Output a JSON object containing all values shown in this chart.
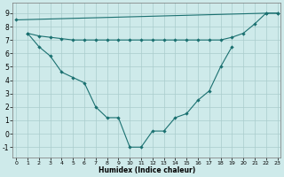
{
  "line1_x": [
    0,
    22,
    23
  ],
  "line1_y": [
    8.5,
    9.0,
    9.0
  ],
  "line2_x": [
    1,
    2,
    3,
    4,
    5,
    6,
    7,
    8,
    9,
    10,
    11,
    12,
    13,
    14,
    15,
    16,
    17,
    18,
    19,
    20,
    21,
    22,
    23
  ],
  "line2_y": [
    7.5,
    7.3,
    7.2,
    7.1,
    7.0,
    7.0,
    7.0,
    7.0,
    7.0,
    7.0,
    7.0,
    7.0,
    7.0,
    7.0,
    7.0,
    7.0,
    7.0,
    7.0,
    7.2,
    7.5,
    8.2,
    9.0,
    9.0
  ],
  "line3_x": [
    1,
    2,
    3,
    4,
    5,
    6,
    7,
    8,
    9,
    10,
    11,
    12,
    13,
    14,
    15,
    16,
    17,
    18,
    19
  ],
  "line3_y": [
    7.5,
    6.5,
    5.8,
    4.6,
    4.2,
    3.8,
    2.0,
    1.2,
    1.2,
    -1.0,
    -1.0,
    0.2,
    0.2,
    1.2,
    1.5,
    2.5,
    3.2,
    5.0,
    6.5
  ],
  "xlabel": "Humidex (Indice chaleur)",
  "xticks": [
    0,
    1,
    2,
    3,
    4,
    5,
    6,
    7,
    8,
    9,
    10,
    11,
    12,
    13,
    14,
    15,
    16,
    17,
    18,
    19,
    20,
    21,
    22,
    23
  ],
  "yticks": [
    -1,
    0,
    1,
    2,
    3,
    4,
    5,
    6,
    7,
    8,
    9
  ],
  "xlim": [
    -0.3,
    23.3
  ],
  "ylim": [
    -1.8,
    9.8
  ],
  "line_color": "#1a7070",
  "bg_color": "#ceeaea",
  "grid_color": "#aacccc"
}
